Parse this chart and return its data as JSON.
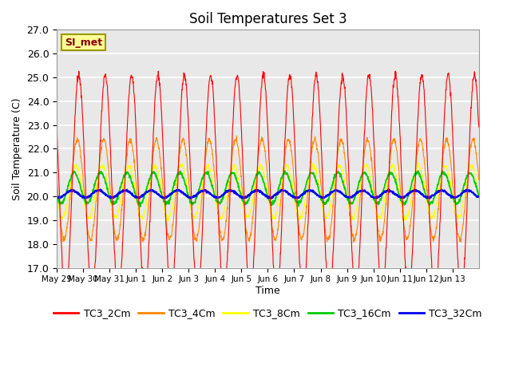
{
  "title": "Soil Temperatures Set 3",
  "xlabel": "Time",
  "ylabel": "Soil Temperature (C)",
  "ylim": [
    17.0,
    27.0
  ],
  "yticks": [
    17.0,
    18.0,
    19.0,
    20.0,
    21.0,
    22.0,
    23.0,
    24.0,
    25.0,
    26.0,
    27.0
  ],
  "xtick_labels": [
    "May 29",
    "May 30",
    "May 31",
    "Jun 1",
    "Jun 2",
    "Jun 3",
    "Jun 4",
    "Jun 5",
    "Jun 6",
    "Jun 7",
    "Jun 8",
    "Jun 9",
    "Jun 10",
    "Jun 11",
    "Jun 12",
    "Jun 13"
  ],
  "colors": {
    "TC3_2Cm": "#ff0000",
    "TC3_4Cm": "#ff8800",
    "TC3_8Cm": "#ffff00",
    "TC3_16Cm": "#00cc00",
    "TC3_32Cm": "#0000ee"
  },
  "legend_label": "SI_met",
  "legend_bg": "#ffff99",
  "legend_border": "#999900",
  "background_color": "#e8e8e8",
  "grid_color": "#ffffff",
  "series_names": [
    "TC3_2Cm",
    "TC3_4Cm",
    "TC3_8Cm",
    "TC3_16Cm",
    "TC3_32Cm"
  ]
}
